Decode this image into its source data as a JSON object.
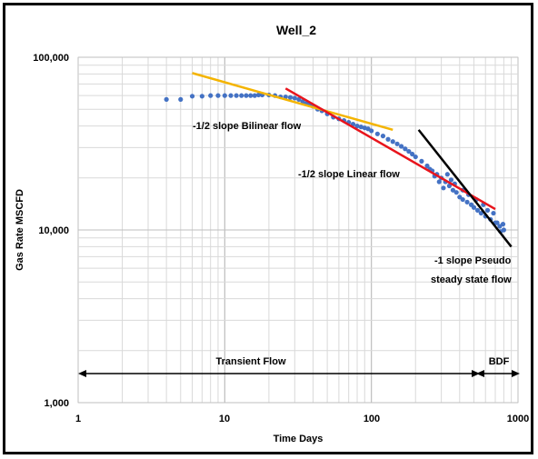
{
  "chart_data": {
    "type": "scatter",
    "title": "Well_2",
    "xlabel": "Time Days",
    "ylabel": "Gas Rate MSCFD",
    "x_scale": "log",
    "y_scale": "log",
    "xlim": [
      1,
      1000
    ],
    "ylim": [
      1000,
      100000
    ],
    "x_ticks": [
      {
        "value": 1,
        "label": "1"
      },
      {
        "value": 10,
        "label": "10"
      },
      {
        "value": 100,
        "label": "100"
      },
      {
        "value": 1000,
        "label": "1000"
      }
    ],
    "y_ticks": [
      {
        "value": 1000,
        "label": "1,000"
      },
      {
        "value": 10000,
        "label": "10,000"
      },
      {
        "value": 100000,
        "label": "100,000"
      }
    ],
    "grid": true,
    "series": [
      {
        "color": "#4472C4",
        "points": [
          [
            4,
            57000
          ],
          [
            5,
            57000
          ],
          [
            6,
            59500
          ],
          [
            7,
            59500
          ],
          [
            8,
            60000
          ],
          [
            9,
            60000
          ],
          [
            10,
            60000
          ],
          [
            11,
            60000
          ],
          [
            12,
            60000
          ],
          [
            13,
            60000
          ],
          [
            14,
            60000
          ],
          [
            15,
            60000
          ],
          [
            16,
            60000
          ],
          [
            17,
            60500
          ],
          [
            18,
            60500
          ],
          [
            20,
            60500
          ],
          [
            22,
            60000
          ],
          [
            24,
            59000
          ],
          [
            26,
            59000
          ],
          [
            28,
            58500
          ],
          [
            30,
            58000
          ],
          [
            32,
            57000
          ],
          [
            34,
            55500
          ],
          [
            36,
            54000
          ],
          [
            38,
            53000
          ],
          [
            40,
            52000
          ],
          [
            43,
            50000
          ],
          [
            46,
            49000
          ],
          [
            50,
            47000
          ],
          [
            55,
            45000
          ],
          [
            60,
            44000
          ],
          [
            65,
            43000
          ],
          [
            70,
            42000
          ],
          [
            75,
            41000
          ],
          [
            80,
            40000
          ],
          [
            85,
            39500
          ],
          [
            90,
            39000
          ],
          [
            95,
            38500
          ],
          [
            100,
            37500
          ],
          [
            110,
            36000
          ],
          [
            120,
            35000
          ],
          [
            130,
            33500
          ],
          [
            140,
            32500
          ],
          [
            150,
            31500
          ],
          [
            160,
            30500
          ],
          [
            170,
            29500
          ],
          [
            180,
            28500
          ],
          [
            190,
            27500
          ],
          [
            200,
            26500
          ],
          [
            220,
            25000
          ],
          [
            240,
            23500
          ],
          [
            260,
            22000
          ],
          [
            280,
            21000
          ],
          [
            300,
            20000
          ],
          [
            320,
            19000
          ],
          [
            340,
            18000
          ],
          [
            360,
            17000
          ],
          [
            380,
            16500
          ],
          [
            400,
            15500
          ],
          [
            420,
            15000
          ],
          [
            450,
            14500
          ],
          [
            480,
            14000
          ],
          [
            500,
            13500
          ],
          [
            530,
            13000
          ],
          [
            560,
            12500
          ],
          [
            600,
            12000
          ],
          [
            650,
            11500
          ],
          [
            700,
            11000
          ],
          [
            750,
            10500
          ],
          [
            800,
            10000
          ],
          [
            330,
            21000
          ],
          [
            350,
            19500
          ],
          [
            370,
            18500
          ],
          [
            420,
            17000
          ],
          [
            460,
            16000
          ],
          [
            520,
            15000
          ],
          [
            580,
            14000
          ],
          [
            620,
            13000
          ],
          [
            680,
            12500
          ],
          [
            720,
            11000
          ],
          [
            760,
            9800
          ],
          [
            790,
            10800
          ],
          [
            310,
            17500
          ],
          [
            290,
            19000
          ],
          [
            270,
            20500
          ],
          [
            250,
            22500
          ]
        ]
      }
    ],
    "trend_lines": [
      {
        "color": "#F4B400",
        "x": [
          6,
          140
        ],
        "y": [
          81000,
          38000
        ]
      },
      {
        "color": "#E8141C",
        "x": [
          26,
          700
        ],
        "y": [
          66000,
          13200
        ]
      },
      {
        "color": "#000000",
        "x": [
          210,
          900
        ],
        "y": [
          38000,
          8000
        ]
      }
    ],
    "annotations": [
      {
        "text": "-1/2 slope Bilinear flow"
      },
      {
        "text": "-1/2 slope Linear flow"
      },
      {
        "text": "-1 slope Pseudo"
      },
      {
        "text": "steady state flow"
      },
      {
        "text": "Transient Flow"
      },
      {
        "text": "BDF"
      }
    ]
  }
}
